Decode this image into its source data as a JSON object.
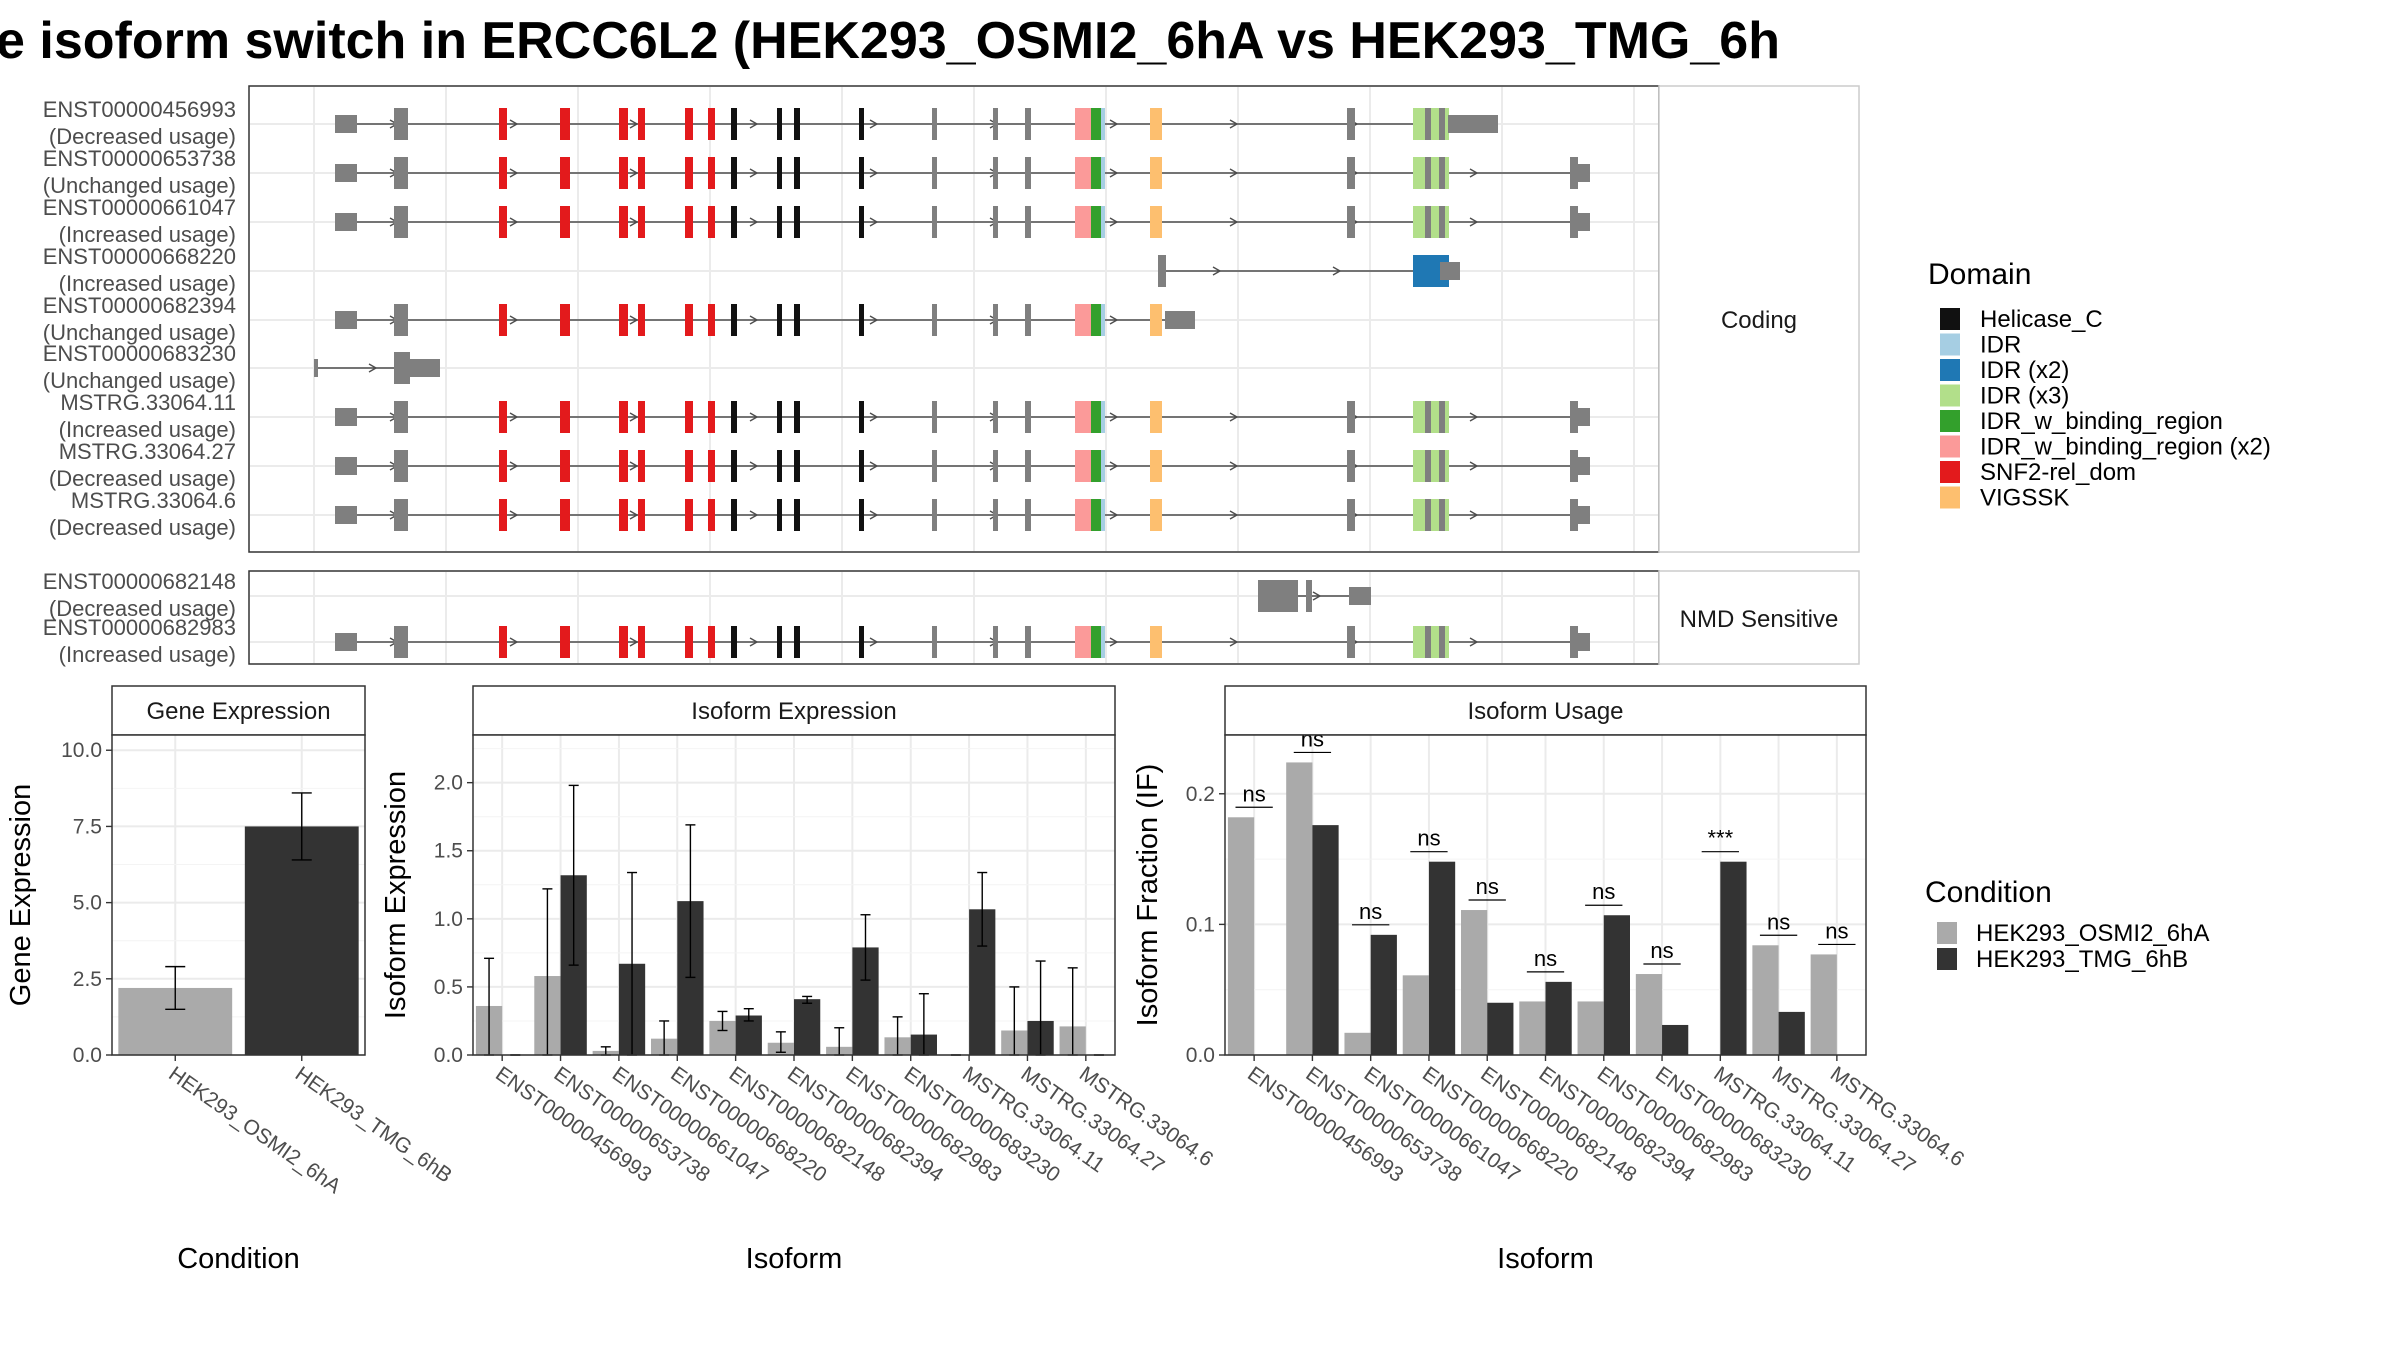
{
  "title": "e isoform switch in ERCC6L2 (HEK293_OSMI2_6hA vs HEK293_TMG_6h",
  "colors": {
    "exon": "#7f7f7f",
    "Helicase_C": "#111111",
    "IDR": "#a6cee3",
    "IDR (x2)": "#1f78b4",
    "IDR (x3)": "#b2df8a",
    "IDR_w_binding_region": "#33a02c",
    "IDR_w_binding_region (x2)": "#fb9a99",
    "SNF2-rel_dom": "#e31a1c",
    "VIGSSK": "#fdbf6f",
    "cond_a": "#aaaaaa",
    "cond_b": "#333333"
  },
  "structure": {
    "coding_strip": "Coding",
    "nmd_strip": "NMD Sensitive",
    "coding": [
      {
        "id": "ENST00000456993",
        "usage": "(Decreased usage)"
      },
      {
        "id": "ENST00000653738",
        "usage": "(Unchanged usage)"
      },
      {
        "id": "ENST00000661047",
        "usage": "(Increased usage)"
      },
      {
        "id": "ENST00000668220",
        "usage": "(Increased usage)"
      },
      {
        "id": "ENST00000682394",
        "usage": "(Unchanged usage)"
      },
      {
        "id": "ENST00000683230",
        "usage": "(Unchanged usage)"
      },
      {
        "id": "MSTRG.33064.11",
        "usage": "(Increased usage)"
      },
      {
        "id": "MSTRG.33064.27",
        "usage": "(Decreased usage)"
      },
      {
        "id": "MSTRG.33064.6",
        "usage": "(Decreased usage)"
      }
    ],
    "nmd": [
      {
        "id": "ENST00000682148",
        "usage": "(Decreased usage)"
      },
      {
        "id": "ENST00000682983",
        "usage": "(Increased usage)"
      }
    ]
  },
  "domain_legend": {
    "title": "Domain",
    "items": [
      "Helicase_C",
      "IDR",
      "IDR (x2)",
      "IDR (x3)",
      "IDR_w_binding_region",
      "IDR_w_binding_region (x2)",
      "SNF2-rel_dom",
      "VIGSSK"
    ]
  },
  "condition_legend": {
    "title": "Condition",
    "items": [
      "HEK293_OSMI2_6hA",
      "HEK293_TMG_6hB"
    ]
  },
  "chart_data": [
    {
      "type": "bar",
      "title": "Gene Expression",
      "xlabel": "Condition",
      "ylabel": "Gene Expression",
      "ylim": [
        0,
        10.5
      ],
      "yticks": [
        "0.0",
        "2.5",
        "5.0",
        "7.5",
        "10.0"
      ],
      "categories": [
        "HEK293_OSMI2_6hA",
        "HEK293_TMG_6hB"
      ],
      "values": [
        2.2,
        7.5
      ],
      "errors": [
        [
          1.5,
          2.9
        ],
        [
          6.4,
          8.6
        ]
      ]
    },
    {
      "type": "bar",
      "title": "Isoform Expression",
      "xlabel": "Isoform",
      "ylabel": "Isoform Expression",
      "ylim": [
        0,
        2.35
      ],
      "yticks": [
        "0.0",
        "0.5",
        "1.0",
        "1.5",
        "2.0"
      ],
      "categories": [
        "ENST00000456993",
        "ENST00000653738",
        "ENST00000661047",
        "ENST00000668220",
        "ENST00000682148",
        "ENST00000682394",
        "ENST00000682983",
        "ENST00000683230",
        "MSTRG.33064.11",
        "MSTRG.33064.27",
        "MSTRG.33064.6"
      ],
      "series": [
        {
          "name": "HEK293_OSMI2_6hA",
          "values": [
            0.36,
            0.58,
            0.03,
            0.12,
            0.25,
            0.09,
            0.06,
            0.13,
            0.0,
            0.18,
            0.21
          ],
          "errors": [
            [
              0.0,
              0.71
            ],
            [
              0.0,
              1.22
            ],
            [
              0.0,
              0.06
            ],
            [
              0.0,
              0.25
            ],
            [
              0.18,
              0.32
            ],
            [
              0.02,
              0.17
            ],
            [
              0.0,
              0.2
            ],
            [
              0.0,
              0.28
            ],
            [
              0.0,
              0.0
            ],
            [
              0.0,
              0.5
            ],
            [
              0.0,
              0.64
            ]
          ]
        },
        {
          "name": "HEK293_TMG_6hB",
          "values": [
            0.0,
            1.32,
            0.67,
            1.13,
            0.29,
            0.41,
            0.79,
            0.15,
            1.07,
            0.25,
            0.0
          ],
          "errors": [
            [
              0.0,
              0.0
            ],
            [
              0.66,
              1.98
            ],
            [
              0.0,
              1.34
            ],
            [
              0.57,
              1.69
            ],
            [
              0.25,
              0.34
            ],
            [
              0.38,
              0.43
            ],
            [
              0.55,
              1.03
            ],
            [
              0.0,
              0.45
            ],
            [
              0.8,
              1.34
            ],
            [
              0.0,
              0.69
            ],
            [
              0.0,
              0.0
            ]
          ]
        }
      ]
    },
    {
      "type": "bar",
      "title": "Isoform Usage",
      "xlabel": "Isoform",
      "ylabel": "Isoform Fraction (IF)",
      "ylim": [
        0,
        0.245
      ],
      "yticks": [
        "0.0",
        "0.1",
        "0.2"
      ],
      "categories": [
        "ENST00000456993",
        "ENST00000653738",
        "ENST00000661047",
        "ENST00000668220",
        "ENST00000682148",
        "ENST00000682394",
        "ENST00000682983",
        "ENST00000683230",
        "MSTRG.33064.11",
        "MSTRG.33064.27",
        "MSTRG.33064.6"
      ],
      "series": [
        {
          "name": "HEK293_OSMI2_6hA",
          "values": [
            0.182,
            0.224,
            0.017,
            0.061,
            0.111,
            0.041,
            0.041,
            0.062,
            0.0,
            0.084,
            0.077
          ]
        },
        {
          "name": "HEK293_TMG_6hB",
          "values": [
            0.0,
            0.176,
            0.092,
            0.148,
            0.04,
            0.056,
            0.107,
            0.023,
            0.148,
            0.033,
            0.0
          ]
        }
      ],
      "significance": [
        "ns",
        "ns",
        "ns",
        "ns",
        "ns",
        "ns",
        "ns",
        "ns",
        "***",
        "ns",
        "ns"
      ]
    }
  ]
}
